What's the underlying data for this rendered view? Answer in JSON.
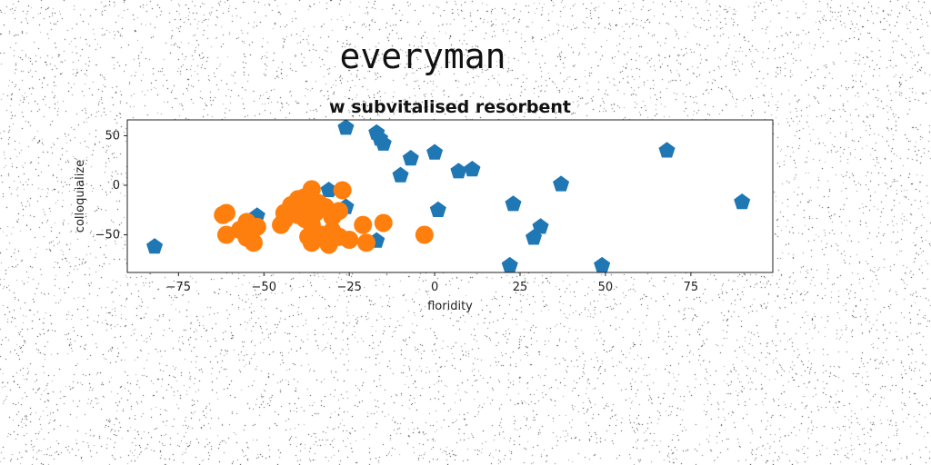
{
  "suptitle": "everyman",
  "chart_data": {
    "type": "scatter",
    "title": "w subvitalised resorbent",
    "xlabel": "floridity",
    "ylabel": "colloquialize",
    "xlim": [
      -90,
      99
    ],
    "ylim": [
      -88,
      66
    ],
    "xticks": [
      -75,
      -50,
      -25,
      0,
      25,
      50,
      75
    ],
    "yticks": [
      -50,
      0,
      50
    ],
    "grid": false,
    "legend": "none",
    "series": [
      {
        "marker": "pentagon",
        "color": "#1f77b4",
        "points": [
          [
            -26,
            58
          ],
          [
            -17,
            53
          ],
          [
            -15,
            42
          ],
          [
            -16,
            47
          ],
          [
            0,
            33
          ],
          [
            -7,
            27
          ],
          [
            7,
            14
          ],
          [
            11,
            16
          ],
          [
            -10,
            10
          ],
          [
            68,
            35
          ],
          [
            37,
            1
          ],
          [
            90,
            -17
          ],
          [
            23,
            -19
          ],
          [
            1,
            -25
          ],
          [
            31,
            -42
          ],
          [
            29,
            -53
          ],
          [
            22,
            -81
          ],
          [
            49,
            -81
          ],
          [
            -82,
            -62
          ],
          [
            -17,
            -56
          ],
          [
            -31,
            -5
          ],
          [
            -26,
            -22
          ],
          [
            -52,
            -31
          ],
          [
            -40,
            -18
          ],
          [
            -35,
            -27
          ]
        ]
      },
      {
        "marker": "circle",
        "color": "#ff7f0e",
        "points": [
          [
            -62,
            -30
          ],
          [
            -61,
            -28
          ],
          [
            -55,
            -37
          ],
          [
            -52,
            -42
          ],
          [
            -57,
            -45
          ],
          [
            -61,
            -50
          ],
          [
            -55,
            -53
          ],
          [
            -53,
            -58
          ],
          [
            -45,
            -40
          ],
          [
            -44,
            -28
          ],
          [
            -42,
            -20
          ],
          [
            -40,
            -14
          ],
          [
            -38,
            -12
          ],
          [
            -37,
            -22
          ],
          [
            -36,
            -4
          ],
          [
            -35,
            -28
          ],
          [
            -38,
            -34
          ],
          [
            -36,
            -40
          ],
          [
            -34,
            -18
          ],
          [
            -32,
            -22
          ],
          [
            -30,
            -32
          ],
          [
            -28,
            -26
          ],
          [
            -27,
            -5
          ],
          [
            -30,
            -46
          ],
          [
            -33,
            -50
          ],
          [
            -37,
            -52
          ],
          [
            -36,
            -58
          ],
          [
            -31,
            -60
          ],
          [
            -28,
            -52
          ],
          [
            -25,
            -55
          ],
          [
            -21,
            -40
          ],
          [
            -20,
            -58
          ],
          [
            -15,
            -38
          ],
          [
            -3,
            -50
          ],
          [
            -44,
            -35
          ],
          [
            -40,
            -30
          ]
        ]
      }
    ]
  }
}
